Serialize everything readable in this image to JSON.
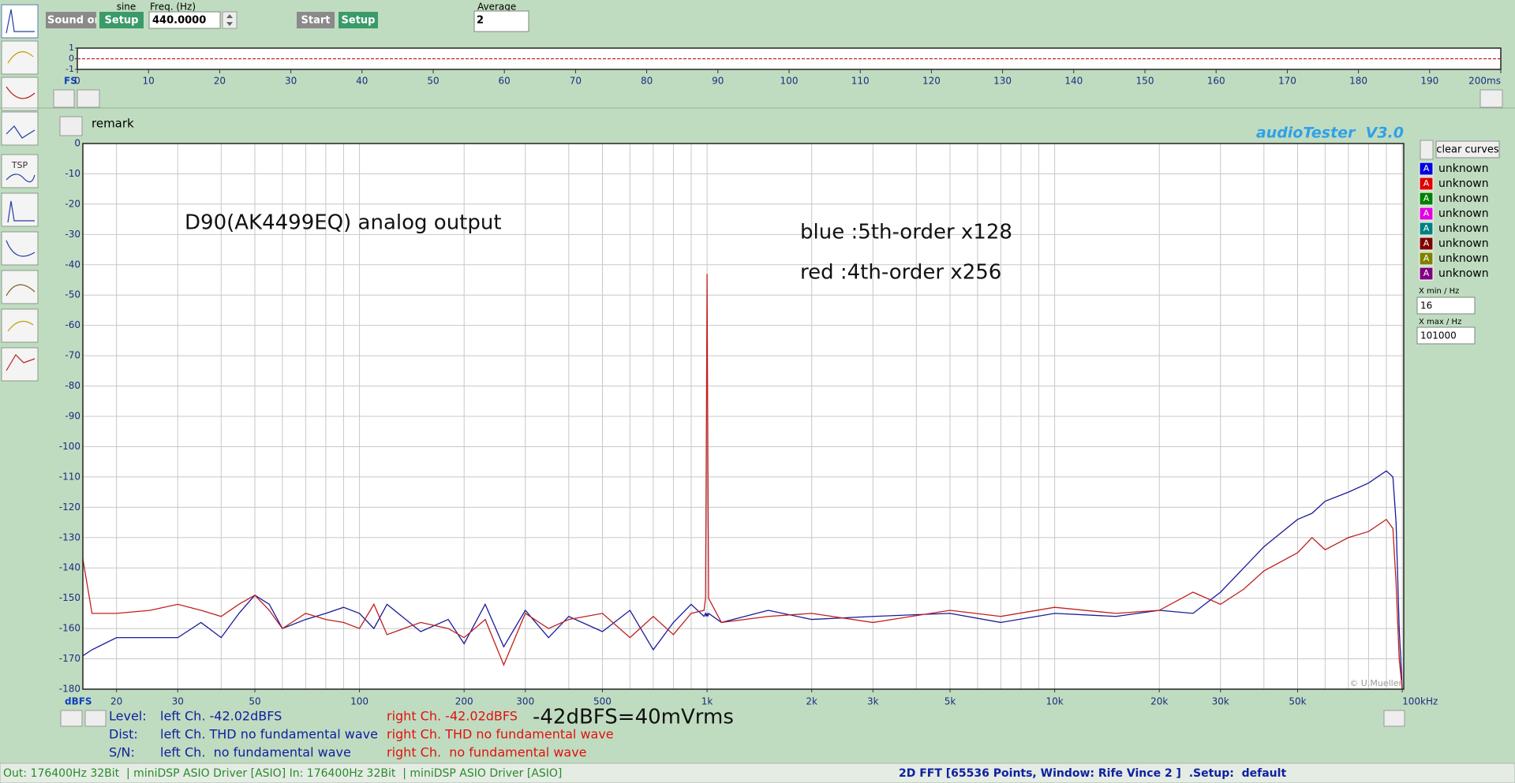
{
  "toolbar": {
    "sound_button": "Sound on",
    "waveform": "sine",
    "setup_button": "Setup",
    "freq_label": "Freq. (Hz)",
    "freq_value": "440.0000",
    "start_button": "Start",
    "setup_button_2": "Setup",
    "average_label": "Average",
    "average_value": "2"
  },
  "sidebar": {
    "tsp_label": "TSP"
  },
  "remark": "remark",
  "app_title": "audioTester  V3.0",
  "chart_data": [
    {
      "type": "line",
      "corner_label": "FS",
      "xlim": [
        0,
        200
      ],
      "xticks": [
        0,
        10,
        20,
        30,
        40,
        50,
        60,
        70,
        80,
        90,
        100,
        110,
        120,
        130,
        140,
        150,
        160,
        170,
        180,
        190,
        {
          "value": 200,
          "label": "200ms"
        }
      ],
      "ylim": [
        -1,
        1
      ],
      "yticks": [
        1,
        0,
        -1
      ],
      "x": [
        0,
        200
      ],
      "series": [
        {
          "color": "#c02020",
          "values": [
            0,
            0
          ]
        }
      ]
    },
    {
      "type": "line",
      "log_x": true,
      "grid": true,
      "title": "D90(AK4499EQ) analog output",
      "annotations": [
        "blue :5th-order x128",
        "red :4th-order x256"
      ],
      "footnote": "-42dBFS=40mVrms",
      "credit": "© U.Mueller",
      "y_label": "dBFS",
      "xlim": [
        16,
        101000
      ],
      "ylim": [
        -180,
        0
      ],
      "xticks": [
        20,
        30,
        50,
        100,
        200,
        300,
        500,
        {
          "value": 1000,
          "label": "1k"
        },
        {
          "value": 2000,
          "label": "2k"
        },
        {
          "value": 3000,
          "label": "3k"
        },
        {
          "value": 5000,
          "label": "5k"
        },
        {
          "value": 10000,
          "label": "10k"
        },
        {
          "value": 20000,
          "label": "20k"
        },
        {
          "value": 30000,
          "label": "30k"
        },
        {
          "value": 50000,
          "label": "50k"
        },
        {
          "value": 100000,
          "label": "100kHz"
        }
      ],
      "xgrid": [
        20,
        30,
        40,
        50,
        60,
        70,
        80,
        90,
        100,
        200,
        300,
        400,
        500,
        600,
        700,
        800,
        900,
        1000,
        2000,
        3000,
        4000,
        5000,
        6000,
        7000,
        8000,
        9000,
        10000,
        20000,
        30000,
        40000,
        50000,
        60000,
        70000,
        80000,
        90000,
        100000
      ],
      "yticks": [
        0,
        -10,
        -20,
        -30,
        -40,
        -50,
        -60,
        -70,
        -80,
        -90,
        -100,
        -110,
        -120,
        -130,
        -140,
        -150,
        -160,
        -170,
        -180
      ],
      "x": [
        16,
        17,
        20,
        25,
        30,
        35,
        40,
        45,
        50,
        55,
        60,
        70,
        80,
        90,
        100,
        110,
        120,
        150,
        180,
        200,
        230,
        260,
        300,
        350,
        400,
        500,
        600,
        700,
        800,
        900,
        980,
        990,
        995,
        1000,
        1005,
        1010,
        1100,
        1500,
        2000,
        3000,
        5000,
        7000,
        10000,
        15000,
        20000,
        25000,
        30000,
        35000,
        40000,
        50000,
        55000,
        60000,
        70000,
        80000,
        90000,
        94000,
        96000,
        98000,
        100000
      ],
      "series": [
        {
          "color": "#1a1a9a",
          "values": [
            -169,
            -167,
            -163,
            -163,
            -163,
            -158,
            -163,
            -155,
            -149,
            -152,
            -160,
            -157,
            -155,
            -153,
            -155,
            -160,
            -152,
            -161,
            -157,
            -165,
            -152,
            -166,
            -154,
            -163,
            -156,
            -161,
            -154,
            -167,
            -158,
            -152,
            -156,
            -155,
            -156,
            -155,
            -156,
            -155,
            -158,
            -154,
            -157,
            -156,
            -155,
            -158,
            -155,
            -156,
            -154,
            -155,
            -148,
            -140,
            -133,
            -124,
            -122,
            -118,
            -115,
            -112,
            -108,
            -110,
            -125,
            -160,
            -180
          ]
        },
        {
          "color": "#c02020",
          "values": [
            -137,
            -155,
            -155,
            -154,
            -152,
            -154,
            -156,
            -152,
            -149,
            -154,
            -160,
            -155,
            -157,
            -158,
            -160,
            -152,
            -162,
            -158,
            -160,
            -163,
            -157,
            -172,
            -155,
            -160,
            -157,
            -155,
            -163,
            -156,
            -162,
            -155,
            -154,
            -150,
            -100,
            -43,
            -100,
            -150,
            -158,
            -156,
            -155,
            -158,
            -154,
            -156,
            -153,
            -155,
            -154,
            -148,
            -152,
            -147,
            -141,
            -135,
            -130,
            -134,
            -130,
            -128,
            -124,
            -127,
            -145,
            -170,
            -180
          ]
        }
      ]
    }
  ],
  "curves_panel": {
    "clear_button": "clear curves",
    "curves": [
      {
        "marker": "A",
        "name": "unknown",
        "color": "#0000e0"
      },
      {
        "marker": "A",
        "name": "unknown",
        "color": "#e00000"
      },
      {
        "marker": "A",
        "name": "unknown",
        "color": "#008000"
      },
      {
        "marker": "A",
        "name": "unknown",
        "color": "#e000e0"
      },
      {
        "marker": "A",
        "name": "unknown",
        "color": "#008080"
      },
      {
        "marker": "A",
        "name": "unknown",
        "color": "#800000"
      },
      {
        "marker": "A",
        "name": "unknown",
        "color": "#808000"
      },
      {
        "marker": "A",
        "name": "unknown",
        "color": "#800080"
      }
    ],
    "xmin_label": "X min / Hz",
    "xmin_value": "16",
    "xmax_label": "X max / Hz",
    "xmax_value": "101000"
  },
  "measurements": [
    {
      "label": "Level:",
      "left": "left Ch. -42.02dBFS",
      "right": "right Ch. -42.02dBFS"
    },
    {
      "label": "Dist:",
      "left": "left Ch. THD no fundamental wave",
      "right": "right Ch. THD no fundamental wave"
    },
    {
      "label": "S/N:",
      "left": "left Ch.  no fundamental wave",
      "right": "right Ch.  no fundamental wave"
    }
  ],
  "status_bar": {
    "left": "Out: 176400Hz 32Bit  | miniDSP ASIO Driver [ASIO] In: 176400Hz 32Bit  | miniDSP ASIO Driver [ASIO]",
    "right": "2D FFT [65536 Points, Window: Rife Vince 2 ]  .Setup:  default"
  }
}
